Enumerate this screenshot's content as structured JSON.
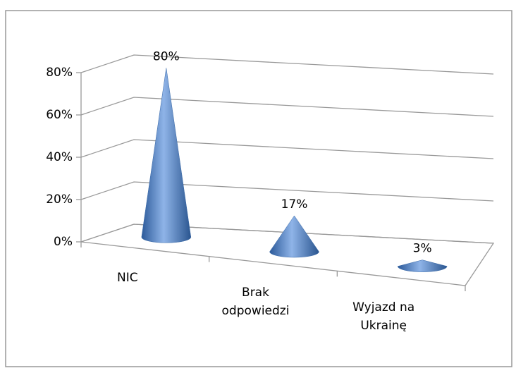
{
  "chart_data": {
    "type": "cone",
    "categories": [
      "NIC",
      "Brak odpowiedzi",
      "Wyjazd na Ukrainę"
    ],
    "values": [
      80,
      17,
      3
    ],
    "value_labels": [
      "80%",
      "17%",
      "3%"
    ],
    "color": "#4f81bd",
    "ylim": [
      0,
      80
    ],
    "yticks": [
      {
        "value": 0,
        "label": "0%"
      },
      {
        "value": 20,
        "label": "20%"
      },
      {
        "value": 40,
        "label": "40%"
      },
      {
        "value": 60,
        "label": "60%"
      },
      {
        "value": 80,
        "label": "80%"
      }
    ],
    "grid": true
  }
}
